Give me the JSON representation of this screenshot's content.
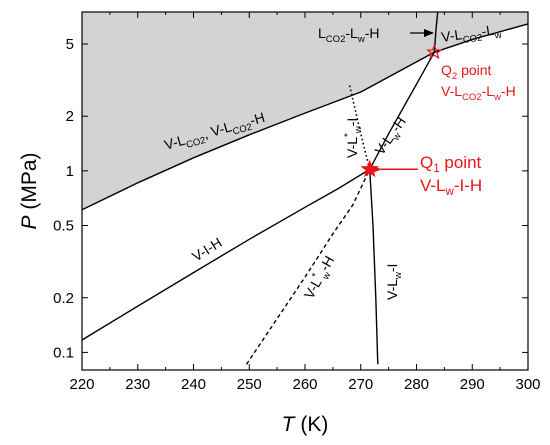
{
  "chart_data": {
    "type": "line",
    "title": "",
    "xlabel": {
      "symbol": "T",
      "unit": " (K)"
    },
    "ylabel": {
      "symbol": "P",
      "unit": " (MPa)"
    },
    "xlim": [
      220,
      300
    ],
    "ylim": [
      0.08,
      7.5
    ],
    "y_scale": "log",
    "x_ticks": [
      220,
      230,
      240,
      250,
      260,
      270,
      280,
      290,
      300
    ],
    "x_tick_labels": [
      "220",
      "230",
      "240",
      "250",
      "260",
      "270",
      "280",
      "290",
      "300"
    ],
    "y_ticks": [
      0.1,
      0.2,
      0.5,
      1,
      2,
      5
    ],
    "y_tick_labels": [
      "0.1",
      "0.2",
      "0.5",
      "1",
      "2",
      "5"
    ],
    "grid": false,
    "shaded_region_color": "#d3d3d3",
    "curve_color": "#000000",
    "accent_color": "#e8161b",
    "series": [
      {
        "name": "V-I-H",
        "style": "solid",
        "x": [
          220,
          230,
          240,
          250,
          260,
          266,
          271.6
        ],
        "y": [
          0.117,
          0.18,
          0.275,
          0.42,
          0.63,
          0.8,
          1.02
        ]
      },
      {
        "name": "V-LCO2, V-LCO2-H",
        "style": "solid",
        "x": [
          220,
          230,
          240,
          250,
          260,
          270,
          283.2,
          290,
          300
        ],
        "y": [
          0.61,
          0.86,
          1.18,
          1.58,
          2.08,
          2.72,
          4.5,
          5.3,
          6.45
        ]
      },
      {
        "name": "V-Lw-H",
        "style": "solid",
        "x": [
          271.6,
          275,
          280,
          283.2
        ],
        "y": [
          1.02,
          1.6,
          3.0,
          4.5
        ]
      },
      {
        "name": "LCO2-Lw-H",
        "style": "solid",
        "x": [
          283.2,
          283.5,
          283.8
        ],
        "y": [
          4.5,
          6.0,
          7.5
        ]
      },
      {
        "name": "V-Lw-I",
        "style": "solid",
        "x": [
          271.6,
          272.2,
          272.7,
          273.05
        ],
        "y": [
          1.02,
          0.5,
          0.2,
          0.086
        ]
      },
      {
        "name": "V-Lw*-I",
        "style": "dotted",
        "x": [
          268.0,
          270.0,
          271.6
        ],
        "y": [
          2.95,
          1.6,
          1.02
        ]
      },
      {
        "name": "V-Lw*-H",
        "style": "dashed",
        "x": [
          249.5,
          260,
          265,
          268.6,
          271.6
        ],
        "y": [
          0.086,
          0.26,
          0.45,
          0.65,
          1.02
        ]
      }
    ],
    "points": [
      {
        "name": "Q1",
        "x": 271.6,
        "y": 1.02
      },
      {
        "name": "Q2",
        "x": 283.2,
        "y": 4.5
      }
    ],
    "annotations": {
      "vih": {
        "main": "V-I-H"
      },
      "vlco2": {
        "p1": "V-L",
        "s1": "CO2",
        "p2": ", V-L",
        "s2": "CO2",
        "p3": "-H"
      },
      "vlwh": {
        "p1": "V-L",
        "s1": "w",
        "p2": "-H"
      },
      "vlwi": {
        "p1": "V-L",
        "s1": "w",
        "p2": "-I"
      },
      "vlwsi": {
        "p1": "V-L",
        "sup1": "*",
        "s1": "w",
        "p2": "-I"
      },
      "vlwsh": {
        "p1": "V-L",
        "sup1": "*",
        "s1": "w",
        "p2": "-H"
      },
      "lco2lwh": {
        "p1": "L",
        "s1": "CO2",
        "p2": "-L",
        "s2": "w",
        "p3": "-H"
      },
      "vlco2lw": {
        "p1": "V-L",
        "s1": "CO2",
        "p2": "-L",
        "s2": "w"
      },
      "q1": {
        "title": "Q",
        "title_sub": "1",
        "title_rest": " point",
        "p1": "V-L",
        "s1": "w",
        "p2": "-I-H"
      },
      "q2": {
        "title": "Q",
        "title_sub": "2",
        "title_rest": " point",
        "p1": "V-L",
        "s1": "CO2",
        "p2": "-L",
        "s2": "w",
        "p3": "-H"
      }
    }
  }
}
